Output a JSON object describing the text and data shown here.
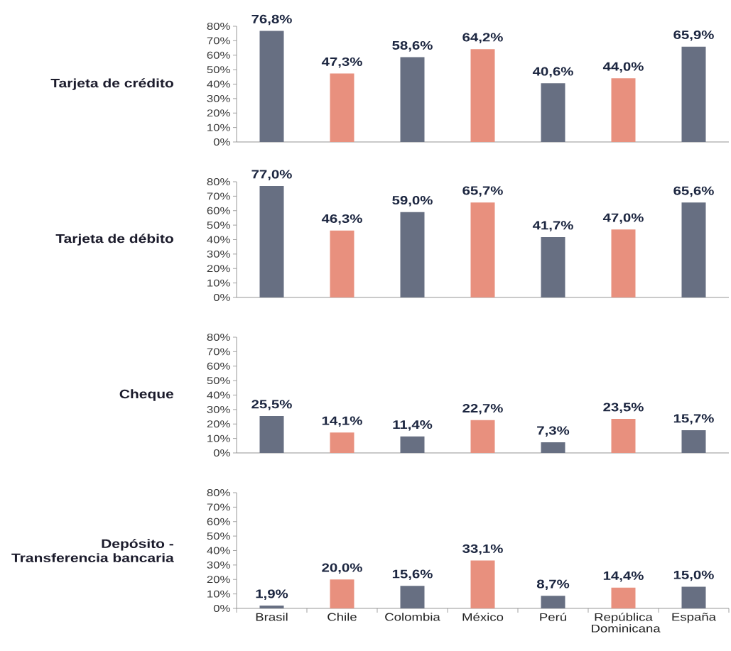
{
  "chart_data": [
    {
      "type": "bar",
      "ylabel": "Tarjeta de crédito",
      "categories": [
        null,
        null,
        null,
        null,
        null,
        null,
        null
      ],
      "values": [
        76.8,
        47.3,
        58.6,
        64.2,
        40.6,
        44.0,
        65.9
      ],
      "value_labels": [
        "76,8%",
        "47,3%",
        "58,6%",
        "64,2%",
        "40,6%",
        "44,0%",
        "65,9%"
      ],
      "colors": [
        "#676f82",
        "#e8907e",
        "#676f82",
        "#e8907e",
        "#676f82",
        "#e8907e",
        "#676f82"
      ],
      "ylim": [
        0,
        80
      ],
      "yticks": [
        {
          "value": 0,
          "label": "0%"
        },
        {
          "value": 10,
          "label": "10%"
        },
        {
          "value": 20,
          "label": "20%"
        },
        {
          "value": 30,
          "label": "30%"
        },
        {
          "value": 40,
          "label": "40%"
        },
        {
          "value": 50,
          "label": "50%"
        },
        {
          "value": 60,
          "label": "60%"
        },
        {
          "value": 70,
          "label": "70%"
        },
        {
          "value": 80,
          "label": "80%"
        }
      ],
      "tick_labels": "y"
    },
    {
      "type": "bar",
      "ylabel": "Tarjeta de débito",
      "categories": [
        null,
        null,
        null,
        null,
        null,
        null,
        null
      ],
      "values": [
        77.0,
        46.3,
        59.0,
        65.7,
        41.7,
        47.0,
        65.6
      ],
      "value_labels": [
        "77,0%",
        "46,3%",
        "59,0%",
        "65,7%",
        "41,7%",
        "47,0%",
        "65,6%"
      ],
      "colors": [
        "#676f82",
        "#e8907e",
        "#676f82",
        "#e8907e",
        "#676f82",
        "#e8907e",
        "#676f82"
      ],
      "ylim": [
        0,
        80
      ],
      "yticks": [
        {
          "value": 0,
          "label": "0%"
        },
        {
          "value": 10,
          "label": "10%"
        },
        {
          "value": 20,
          "label": "20%"
        },
        {
          "value": 30,
          "label": "30%"
        },
        {
          "value": 40,
          "label": "40%"
        },
        {
          "value": 50,
          "label": "50%"
        },
        {
          "value": 60,
          "label": "60%"
        },
        {
          "value": 70,
          "label": "70%"
        },
        {
          "value": 80,
          "label": "80%"
        }
      ],
      "tick_labels": "y"
    },
    {
      "type": "bar",
      "ylabel": "Cheque",
      "categories": [
        null,
        null,
        null,
        null,
        null,
        null,
        null
      ],
      "values": [
        25.5,
        14.1,
        11.4,
        22.7,
        7.3,
        23.5,
        15.7
      ],
      "value_labels": [
        "25,5%",
        "14,1%",
        "11,4%",
        "22,7%",
        "7,3%",
        "23,5%",
        "15,7%"
      ],
      "colors": [
        "#676f82",
        "#e8907e",
        "#676f82",
        "#e8907e",
        "#676f82",
        "#e8907e",
        "#676f82"
      ],
      "ylim": [
        0,
        80
      ],
      "yticks": [
        {
          "value": 0,
          "label": "0%"
        },
        {
          "value": 10,
          "label": "10%"
        },
        {
          "value": 20,
          "label": "20%"
        },
        {
          "value": 30,
          "label": "30%"
        },
        {
          "value": 40,
          "label": "40%"
        },
        {
          "value": 50,
          "label": "50%"
        },
        {
          "value": 60,
          "label": "60%"
        },
        {
          "value": 70,
          "label": "70%"
        },
        {
          "value": 80,
          "label": "80%"
        }
      ],
      "tick_labels": "y"
    },
    {
      "type": "bar",
      "ylabel": "Depósito - Transferencia bancaria",
      "categories": [
        "Brasil",
        "Chile",
        "Colombia",
        "México",
        "Perú",
        "República Dominicana",
        "España"
      ],
      "values": [
        1.9,
        20.0,
        15.6,
        33.1,
        8.7,
        14.4,
        15.0
      ],
      "value_labels": [
        "1,9%",
        "20,0%",
        "15,6%",
        "33,1%",
        "8,7%",
        "14,4%",
        "15,0%"
      ],
      "colors": [
        "#676f82",
        "#e8907e",
        "#676f82",
        "#e8907e",
        "#676f82",
        "#e8907e",
        "#676f82"
      ],
      "ylim": [
        0,
        80
      ],
      "yticks": [
        {
          "value": 0,
          "label": "0%"
        },
        {
          "value": 10,
          "label": "10%"
        },
        {
          "value": 20,
          "label": "20%"
        },
        {
          "value": 30,
          "label": "30%"
        },
        {
          "value": 40,
          "label": "40%"
        },
        {
          "value": 50,
          "label": "50%"
        },
        {
          "value": 60,
          "label": "60%"
        },
        {
          "value": 70,
          "label": "70%"
        },
        {
          "value": 80,
          "label": "80%"
        }
      ]
    }
  ]
}
